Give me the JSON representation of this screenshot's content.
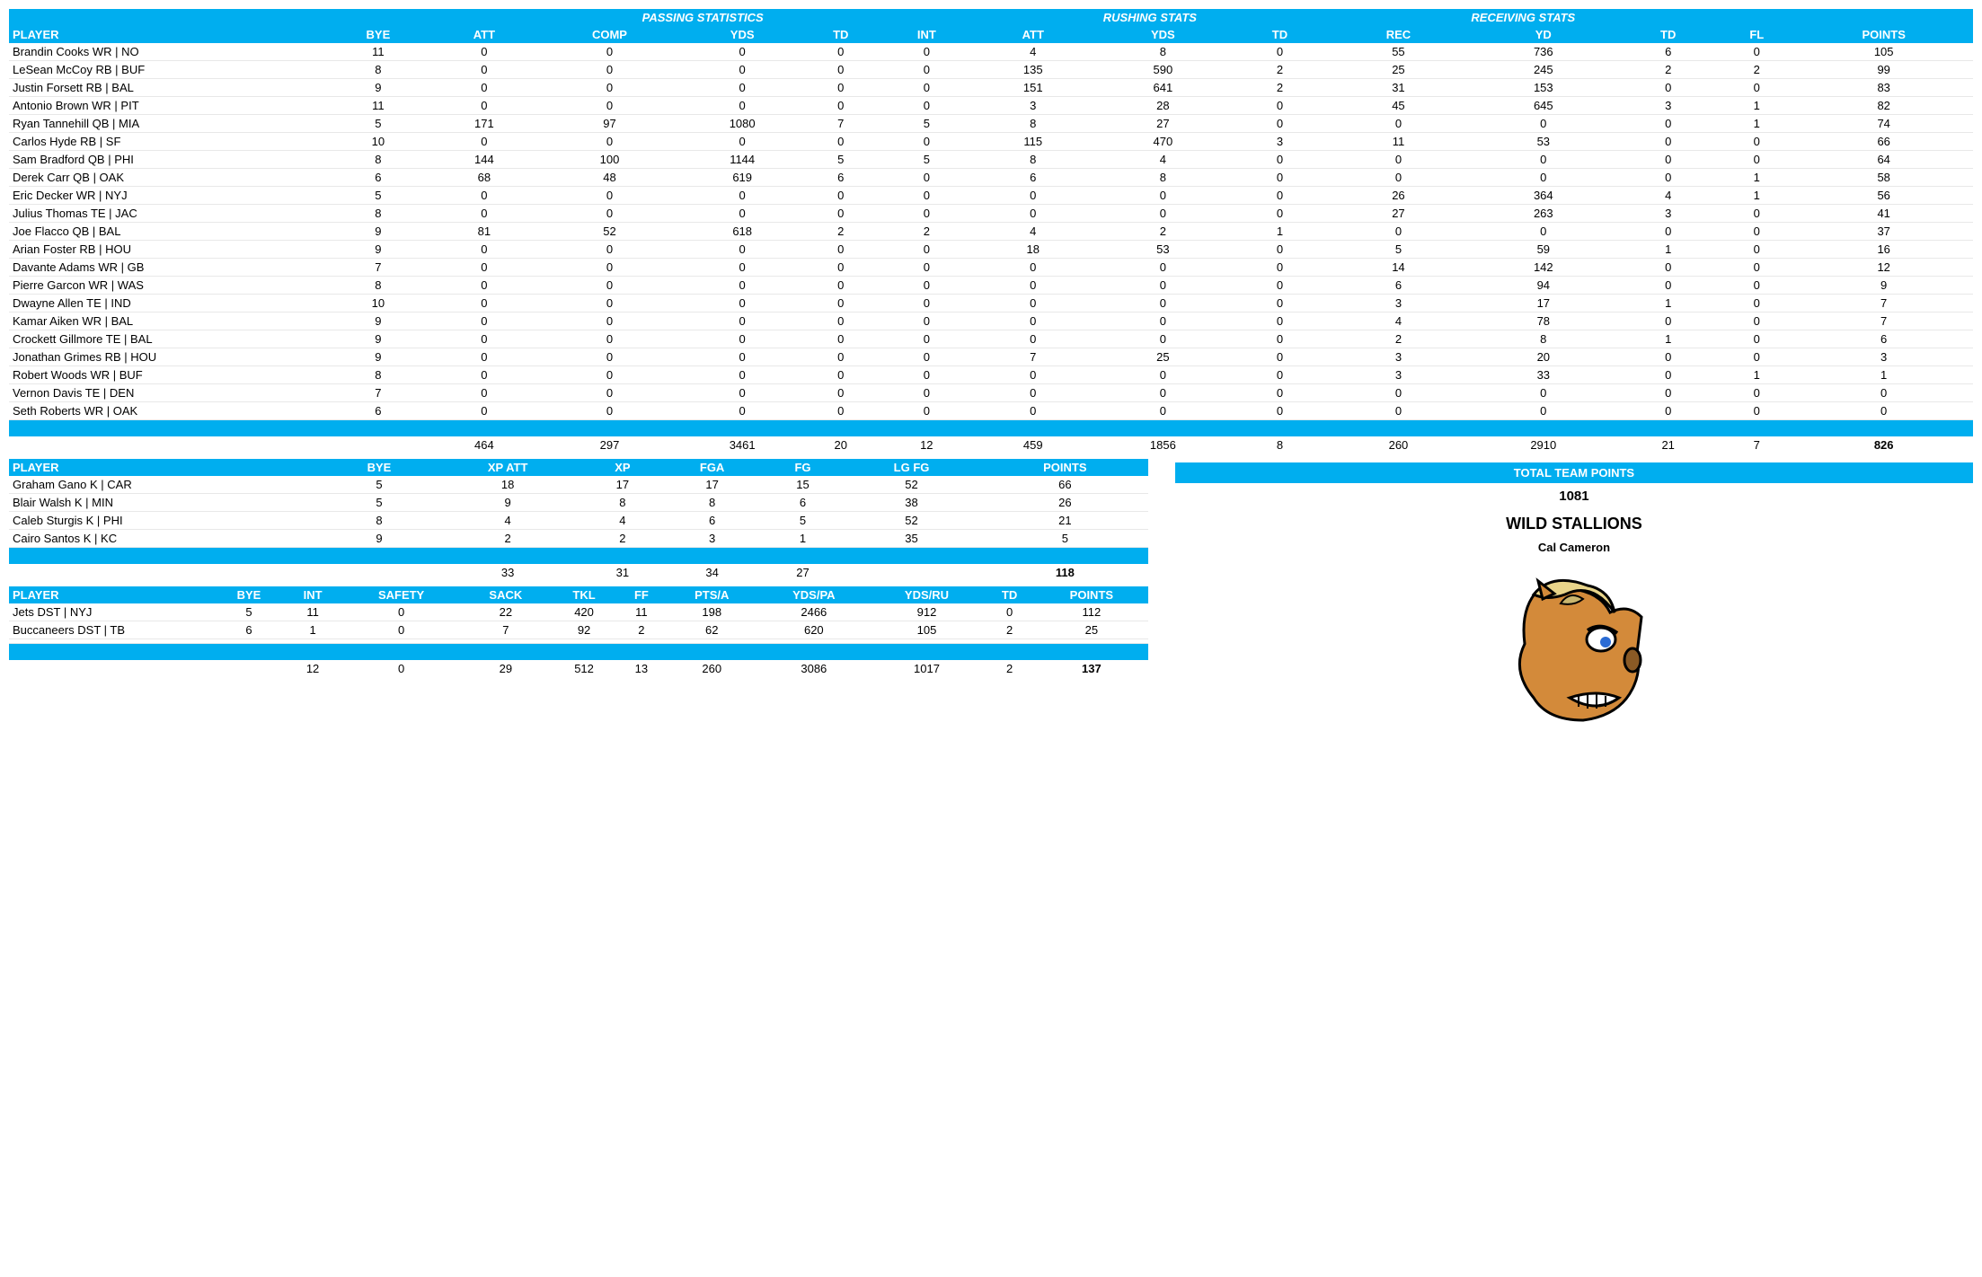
{
  "colors": {
    "accent": "#00aeef",
    "text": "#000000",
    "bg": "#ffffff"
  },
  "offense": {
    "groups": {
      "passing": "PASSING STATISTICS",
      "rushing": "RUSHING STATS",
      "receiving": "RECEIVING STATS"
    },
    "cols": [
      "PLAYER",
      "BYE",
      "ATT",
      "COMP",
      "YDS",
      "TD",
      "INT",
      "ATT",
      "YDS",
      "TD",
      "REC",
      "YD",
      "TD",
      "FL",
      "POINTS"
    ],
    "rows": [
      [
        "Brandin Cooks WR | NO",
        "11",
        "0",
        "0",
        "0",
        "0",
        "0",
        "4",
        "8",
        "0",
        "55",
        "736",
        "6",
        "0",
        "105"
      ],
      [
        "LeSean McCoy RB | BUF",
        "8",
        "0",
        "0",
        "0",
        "0",
        "0",
        "135",
        "590",
        "2",
        "25",
        "245",
        "2",
        "2",
        "99"
      ],
      [
        "Justin Forsett RB | BAL",
        "9",
        "0",
        "0",
        "0",
        "0",
        "0",
        "151",
        "641",
        "2",
        "31",
        "153",
        "0",
        "0",
        "83"
      ],
      [
        "Antonio Brown WR | PIT",
        "11",
        "0",
        "0",
        "0",
        "0",
        "0",
        "3",
        "28",
        "0",
        "45",
        "645",
        "3",
        "1",
        "82"
      ],
      [
        "Ryan Tannehill QB | MIA",
        "5",
        "171",
        "97",
        "1080",
        "7",
        "5",
        "8",
        "27",
        "0",
        "0",
        "0",
        "0",
        "1",
        "74"
      ],
      [
        "Carlos Hyde RB | SF",
        "10",
        "0",
        "0",
        "0",
        "0",
        "0",
        "115",
        "470",
        "3",
        "11",
        "53",
        "0",
        "0",
        "66"
      ],
      [
        "Sam Bradford QB | PHI",
        "8",
        "144",
        "100",
        "1144",
        "5",
        "5",
        "8",
        "4",
        "0",
        "0",
        "0",
        "0",
        "0",
        "64"
      ],
      [
        "Derek Carr QB | OAK",
        "6",
        "68",
        "48",
        "619",
        "6",
        "0",
        "6",
        "8",
        "0",
        "0",
        "0",
        "0",
        "1",
        "58"
      ],
      [
        "Eric Decker WR | NYJ",
        "5",
        "0",
        "0",
        "0",
        "0",
        "0",
        "0",
        "0",
        "0",
        "26",
        "364",
        "4",
        "1",
        "56"
      ],
      [
        "Julius Thomas TE | JAC",
        "8",
        "0",
        "0",
        "0",
        "0",
        "0",
        "0",
        "0",
        "0",
        "27",
        "263",
        "3",
        "0",
        "41"
      ],
      [
        "Joe Flacco QB | BAL",
        "9",
        "81",
        "52",
        "618",
        "2",
        "2",
        "4",
        "2",
        "1",
        "0",
        "0",
        "0",
        "0",
        "37"
      ],
      [
        "Arian Foster RB | HOU",
        "9",
        "0",
        "0",
        "0",
        "0",
        "0",
        "18",
        "53",
        "0",
        "5",
        "59",
        "1",
        "0",
        "16"
      ],
      [
        "Davante Adams WR | GB",
        "7",
        "0",
        "0",
        "0",
        "0",
        "0",
        "0",
        "0",
        "0",
        "14",
        "142",
        "0",
        "0",
        "12"
      ],
      [
        "Pierre Garcon WR | WAS",
        "8",
        "0",
        "0",
        "0",
        "0",
        "0",
        "0",
        "0",
        "0",
        "6",
        "94",
        "0",
        "0",
        "9"
      ],
      [
        "Dwayne Allen TE | IND",
        "10",
        "0",
        "0",
        "0",
        "0",
        "0",
        "0",
        "0",
        "0",
        "3",
        "17",
        "1",
        "0",
        "7"
      ],
      [
        "Kamar Aiken WR | BAL",
        "9",
        "0",
        "0",
        "0",
        "0",
        "0",
        "0",
        "0",
        "0",
        "4",
        "78",
        "0",
        "0",
        "7"
      ],
      [
        "Crockett Gillmore TE | BAL",
        "9",
        "0",
        "0",
        "0",
        "0",
        "0",
        "0",
        "0",
        "0",
        "2",
        "8",
        "1",
        "0",
        "6"
      ],
      [
        "Jonathan Grimes RB | HOU",
        "9",
        "0",
        "0",
        "0",
        "0",
        "0",
        "7",
        "25",
        "0",
        "3",
        "20",
        "0",
        "0",
        "3"
      ],
      [
        "Robert Woods WR | BUF",
        "8",
        "0",
        "0",
        "0",
        "0",
        "0",
        "0",
        "0",
        "0",
        "3",
        "33",
        "0",
        "1",
        "1"
      ],
      [
        "Vernon Davis TE | DEN",
        "7",
        "0",
        "0",
        "0",
        "0",
        "0",
        "0",
        "0",
        "0",
        "0",
        "0",
        "0",
        "0",
        "0"
      ],
      [
        "Seth Roberts WR | OAK",
        "6",
        "0",
        "0",
        "0",
        "0",
        "0",
        "0",
        "0",
        "0",
        "0",
        "0",
        "0",
        "0",
        "0"
      ]
    ],
    "totals": [
      "",
      "",
      "464",
      "297",
      "3461",
      "20",
      "12",
      "459",
      "1856",
      "8",
      "260",
      "2910",
      "21",
      "7",
      "826"
    ]
  },
  "kicking": {
    "cols": [
      "PLAYER",
      "BYE",
      "XP ATT",
      "XP",
      "FGA",
      "FG",
      "LG FG",
      "POINTS"
    ],
    "rows": [
      [
        "Graham Gano K | CAR",
        "5",
        "18",
        "17",
        "17",
        "15",
        "52",
        "66"
      ],
      [
        "Blair Walsh K | MIN",
        "5",
        "9",
        "8",
        "8",
        "6",
        "38",
        "26"
      ],
      [
        "Caleb Sturgis K | PHI",
        "8",
        "4",
        "4",
        "6",
        "5",
        "52",
        "21"
      ],
      [
        "Cairo Santos K | KC",
        "9",
        "2",
        "2",
        "3",
        "1",
        "35",
        "5"
      ]
    ],
    "totals": [
      "",
      "",
      "33",
      "31",
      "34",
      "27",
      "",
      "118"
    ]
  },
  "defense": {
    "cols": [
      "PLAYER",
      "BYE",
      "INT",
      "SAFETY",
      "SACK",
      "TKL",
      "FF",
      "PTS/A",
      "YDS/PA",
      "YDS/RU",
      "TD",
      "POINTS"
    ],
    "rows": [
      [
        "Jets DST | NYJ",
        "5",
        "11",
        "0",
        "22",
        "420",
        "11",
        "198",
        "2466",
        "912",
        "0",
        "112"
      ],
      [
        "Buccaneers DST | TB",
        "6",
        "1",
        "0",
        "7",
        "92",
        "2",
        "62",
        "620",
        "105",
        "2",
        "25"
      ]
    ],
    "blank": [
      "",
      "",
      "",
      "",
      "",
      "",
      "",
      "",
      "",
      "",
      "",
      ""
    ],
    "totals": [
      "",
      "",
      "12",
      "0",
      "29",
      "512",
      "13",
      "260",
      "3086",
      "1017",
      "2",
      "137"
    ]
  },
  "team": {
    "title": "TOTAL TEAM POINTS",
    "points": "1081",
    "name": "WILD STALLIONS",
    "owner": "Cal Cameron"
  }
}
